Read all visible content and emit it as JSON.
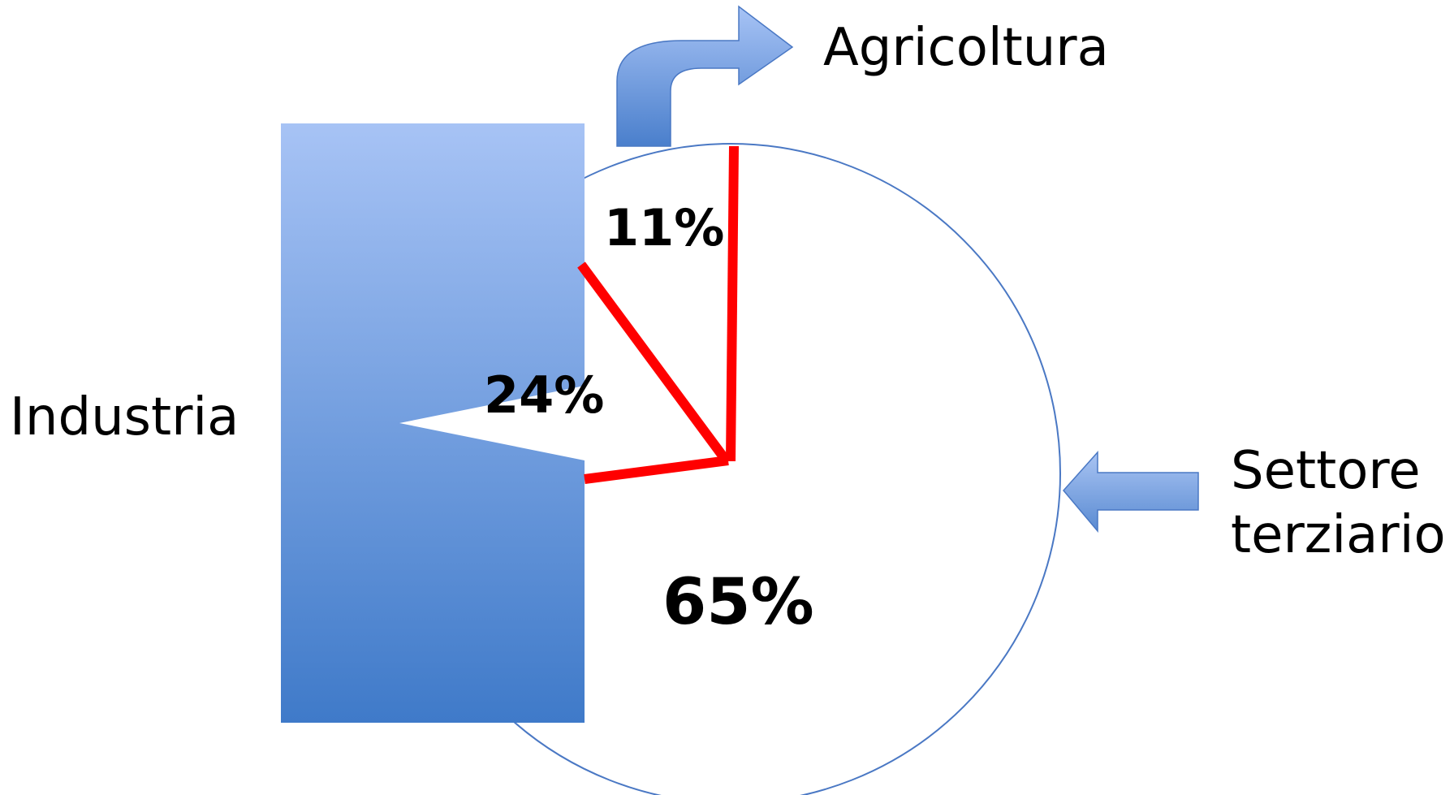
{
  "labels": {
    "agricoltura": "Agricoltura",
    "industria": "Industria",
    "terziario_line1": "Settore",
    "terziario_line2": "terziario"
  },
  "chart_data": {
    "type": "pie",
    "categories": [
      "Agricoltura",
      "Industria",
      "Settore terziario"
    ],
    "values": [
      11,
      24,
      65
    ],
    "value_labels": [
      "11%",
      "24%",
      "65%"
    ],
    "unit": "%"
  },
  "colors": {
    "divider_lines": "#ff0000",
    "circle_outline": "#4a78c4",
    "shape_fill_top": "#a7c3f5",
    "shape_fill_bottom": "#3f7ac9",
    "text": "#000000"
  },
  "icons": {
    "agricoltura_pointer": "curved-up-right-arrow-icon",
    "terziario_pointer": "left-arrow-icon"
  }
}
